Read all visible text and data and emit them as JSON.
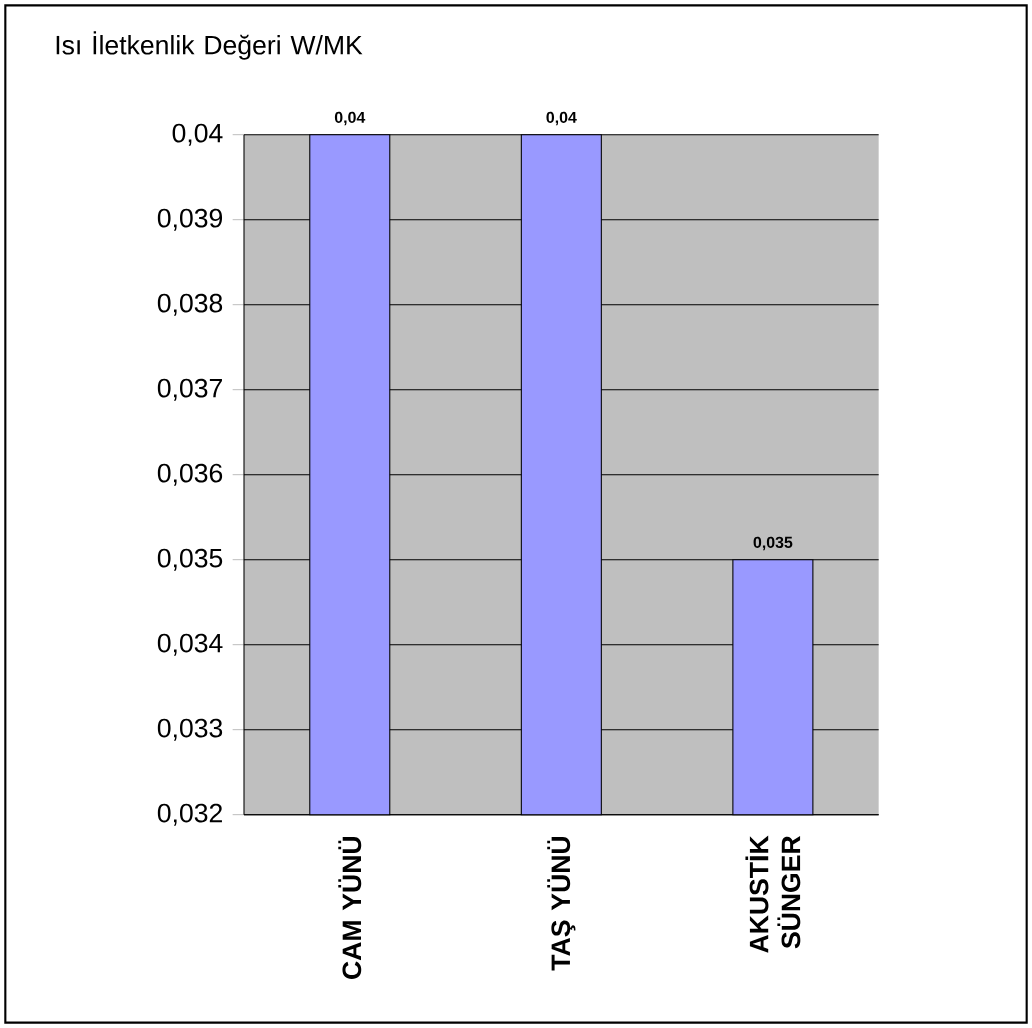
{
  "chart_data": {
    "type": "bar",
    "ylabel": "Isı İletkenlik Değeri W/MK",
    "categories": [
      "CAM YÜNÜ",
      "TAŞ YÜNÜ",
      "AKUSTİK SÜNGER"
    ],
    "values": [
      0.04,
      0.04,
      0.035
    ],
    "value_labels": [
      "0,04",
      "0,04",
      "0,035"
    ],
    "color": "#9999ff",
    "ylim": [
      0.032,
      0.04
    ],
    "yticks": [
      {
        "value": 0.032,
        "label": "0,032"
      },
      {
        "value": 0.033,
        "label": "0,033"
      },
      {
        "value": 0.034,
        "label": "0,034"
      },
      {
        "value": 0.035,
        "label": "0,035"
      },
      {
        "value": 0.036,
        "label": "0,036"
      },
      {
        "value": 0.037,
        "label": "0,037"
      },
      {
        "value": 0.038,
        "label": "0,038"
      },
      {
        "value": 0.039,
        "label": "0,039"
      },
      {
        "value": 0.04,
        "label": "0,04"
      }
    ],
    "grid": "y"
  }
}
